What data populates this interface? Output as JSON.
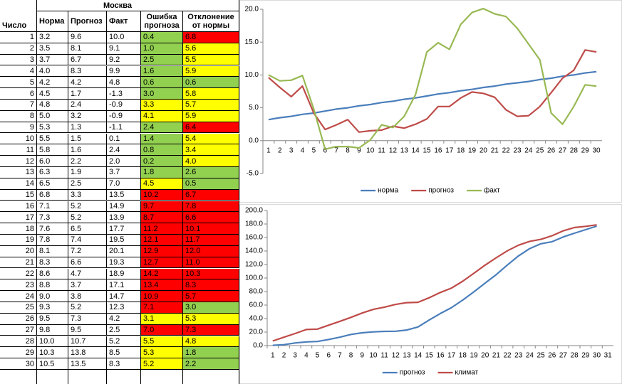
{
  "table": {
    "title": "Москва",
    "headers": [
      "Число",
      "Норма",
      "Прогноз",
      "Факт",
      "Ошибка прогноза",
      "Отклонение от нормы"
    ],
    "rows": [
      [
        "1",
        "3.2",
        "9.6",
        "10.0",
        "0.4",
        "6.8"
      ],
      [
        "2",
        "3.5",
        "8.1",
        "9.1",
        "1.0",
        "5.6"
      ],
      [
        "3",
        "3.7",
        "6.7",
        "9.2",
        "2.5",
        "5.5"
      ],
      [
        "4",
        "4.0",
        "8.3",
        "9.9",
        "1.6",
        "5.9"
      ],
      [
        "5",
        "4.2",
        "4.2",
        "4.8",
        "0.6",
        "0.6"
      ],
      [
        "6",
        "4.5",
        "1.7",
        "-1.3",
        "3.0",
        "5.8"
      ],
      [
        "7",
        "4.8",
        "2.4",
        "-0.9",
        "3.3",
        "5.7"
      ],
      [
        "8",
        "5.0",
        "3.2",
        "-0.9",
        "4.1",
        "5.9"
      ],
      [
        "9",
        "5.3",
        "1.3",
        "-1.1",
        "2.4",
        "6.4"
      ],
      [
        "10",
        "5.5",
        "1.5",
        "0.1",
        "1.4",
        "5.4"
      ],
      [
        "11",
        "5.8",
        "1.6",
        "2.4",
        "0.8",
        "3.4"
      ],
      [
        "12",
        "6.0",
        "2.2",
        "2.0",
        "0.2",
        "4.0"
      ],
      [
        "13",
        "6.3",
        "1.9",
        "3.7",
        "1.8",
        "2.6"
      ],
      [
        "14",
        "6.5",
        "2.5",
        "7.0",
        "4.5",
        "0.5"
      ],
      [
        "15",
        "6.8",
        "3.3",
        "13.5",
        "10.2",
        "6.7"
      ],
      [
        "16",
        "7.1",
        "5.2",
        "14.9",
        "9.7",
        "7.8"
      ],
      [
        "17",
        "7.3",
        "5.2",
        "13.9",
        "8.7",
        "6.6"
      ],
      [
        "18",
        "7.6",
        "6.5",
        "17.7",
        "11.2",
        "10.1"
      ],
      [
        "19",
        "7.8",
        "7.4",
        "19.5",
        "12.1",
        "11.7"
      ],
      [
        "20",
        "8.1",
        "7.2",
        "20.1",
        "12.9",
        "12.0"
      ],
      [
        "21",
        "8.3",
        "6.6",
        "19.3",
        "12.7",
        "11.0"
      ],
      [
        "22",
        "8.6",
        "4.7",
        "18.9",
        "14.2",
        "10.3"
      ],
      [
        "23",
        "8.8",
        "3.7",
        "17.1",
        "13.4",
        "8.3"
      ],
      [
        "24",
        "9.0",
        "3.8",
        "14.7",
        "10.9",
        "5.7"
      ],
      [
        "25",
        "9.3",
        "5.2",
        "12.3",
        "7.1",
        "3.0"
      ],
      [
        "26",
        "9.5",
        "7.3",
        "4.2",
        "3.1",
        "5.3"
      ],
      [
        "27",
        "9.8",
        "9.5",
        "2.5",
        "7.0",
        "7.3"
      ],
      [
        "28",
        "10.0",
        "10.7",
        "5.2",
        "5.5",
        "4.8"
      ],
      [
        "29",
        "10.3",
        "13.8",
        "8.5",
        "5.3",
        "1.8"
      ],
      [
        "30",
        "10.5",
        "13.5",
        "8.3",
        "5.2",
        "2.2"
      ]
    ],
    "error_colors": [
      "#92d050",
      "#92d050",
      "#92d050",
      "#92d050",
      "#92d050",
      "#92d050",
      "#ffff00",
      "#ffff00",
      "#92d050",
      "#92d050",
      "#92d050",
      "#92d050",
      "#92d050",
      "#ffff00",
      "#ff0000",
      "#ff0000",
      "#ff0000",
      "#ff0000",
      "#ff0000",
      "#ff0000",
      "#ff0000",
      "#ff0000",
      "#ff0000",
      "#ff0000",
      "#ff0000",
      "#ffff00",
      "#ff0000",
      "#ffff00",
      "#ffff00",
      "#ffff00"
    ],
    "deviation_colors": [
      "#ff0000",
      "#ffff00",
      "#ffff00",
      "#ffff00",
      "#92d050",
      "#ffff00",
      "#ffff00",
      "#ffff00",
      "#ff0000",
      "#ffff00",
      "#ffff00",
      "#ffff00",
      "#92d050",
      "#92d050",
      "#ff0000",
      "#ff0000",
      "#ff0000",
      "#ff0000",
      "#ff0000",
      "#ff0000",
      "#ff0000",
      "#ff0000",
      "#ff0000",
      "#ff0000",
      "#92d050",
      "#ffff00",
      "#ff0000",
      "#ffff00",
      "#92d050",
      "#92d050"
    ]
  },
  "chart_data": [
    {
      "type": "line",
      "categories": [
        "1",
        "2",
        "3",
        "4",
        "5",
        "6",
        "7",
        "8",
        "9",
        "10",
        "11",
        "12",
        "13",
        "14",
        "15",
        "16",
        "17",
        "18",
        "19",
        "20",
        "21",
        "22",
        "23",
        "24",
        "25",
        "26",
        "27",
        "28",
        "29",
        "30"
      ],
      "series": [
        {
          "name": "норма",
          "color": "#4a7ebb",
          "values": [
            3.2,
            3.5,
            3.7,
            4.0,
            4.2,
            4.5,
            4.8,
            5.0,
            5.3,
            5.5,
            5.8,
            6.0,
            6.3,
            6.5,
            6.8,
            7.1,
            7.3,
            7.6,
            7.8,
            8.1,
            8.3,
            8.6,
            8.8,
            9.0,
            9.3,
            9.5,
            9.8,
            10.0,
            10.3,
            10.5
          ]
        },
        {
          "name": "прогноз",
          "color": "#be4b48",
          "values": [
            9.6,
            8.1,
            6.7,
            8.3,
            4.2,
            1.7,
            2.4,
            3.2,
            1.3,
            1.5,
            1.6,
            2.2,
            1.9,
            2.5,
            3.3,
            5.2,
            5.2,
            6.5,
            7.4,
            7.2,
            6.6,
            4.7,
            3.7,
            3.8,
            5.2,
            7.3,
            9.5,
            10.7,
            13.8,
            13.5
          ]
        },
        {
          "name": "факт",
          "color": "#98b954",
          "values": [
            10.0,
            9.1,
            9.2,
            9.9,
            4.8,
            -1.3,
            -0.9,
            -0.9,
            -1.1,
            0.1,
            2.4,
            2.0,
            3.7,
            7.0,
            13.5,
            14.9,
            13.9,
            17.7,
            19.5,
            20.1,
            19.3,
            18.9,
            17.1,
            14.7,
            12.3,
            4.2,
            2.5,
            5.2,
            8.5,
            8.3
          ]
        }
      ],
      "ylim": [
        -5,
        20
      ],
      "yticks": [
        {
          "value": -5,
          "label": "-5.0"
        },
        {
          "value": 0,
          "label": "0.0"
        },
        {
          "value": 5,
          "label": "5.0"
        },
        {
          "value": 10,
          "label": "10.0"
        },
        {
          "value": 15,
          "label": "15.0"
        },
        {
          "value": 20,
          "label": "20.0"
        }
      ],
      "legend": "bottom"
    },
    {
      "type": "line",
      "categories": [
        "1",
        "2",
        "3",
        "4",
        "5",
        "6",
        "7",
        "8",
        "9",
        "10",
        "11",
        "12",
        "13",
        "14",
        "15",
        "16",
        "17",
        "18",
        "19",
        "20",
        "21",
        "22",
        "23",
        "24",
        "25",
        "26",
        "27",
        "28",
        "29",
        "30",
        "31"
      ],
      "series": [
        {
          "name": "прогноз",
          "color": "#4a7ebb",
          "values": [
            0.4,
            1.4,
            3.9,
            5.5,
            6.1,
            9.1,
            12.4,
            16.5,
            18.9,
            20.3,
            21.1,
            21.3,
            23.1,
            27.6,
            37.8,
            47.5,
            56.2,
            67.4,
            79.5,
            92.4,
            105.1,
            119.3,
            132.7,
            143.6,
            150.7,
            153.8,
            160.8,
            166.3,
            171.6,
            176.8,
            null
          ]
        },
        {
          "name": "климат",
          "color": "#be4b48",
          "values": [
            6.8,
            12.4,
            17.9,
            23.8,
            24.4,
            30.2,
            35.9,
            41.8,
            48.2,
            53.6,
            57.0,
            61.0,
            63.6,
            64.1,
            70.8,
            78.6,
            85.2,
            95.3,
            107.0,
            119.0,
            130.0,
            140.3,
            148.6,
            154.3,
            157.3,
            162.6,
            169.9,
            174.7,
            176.5,
            178.7,
            null
          ]
        }
      ],
      "ylim": [
        0,
        200
      ],
      "yticks": [
        {
          "value": 0,
          "label": "0.0"
        },
        {
          "value": 20,
          "label": "20.0"
        },
        {
          "value": 40,
          "label": "40.0"
        },
        {
          "value": 60,
          "label": "60.0"
        },
        {
          "value": 80,
          "label": "80.0"
        },
        {
          "value": 100,
          "label": "100.0"
        },
        {
          "value": 120,
          "label": "120.0"
        },
        {
          "value": 140,
          "label": "140.0"
        },
        {
          "value": 160,
          "label": "160.0"
        },
        {
          "value": 180,
          "label": "180.0"
        },
        {
          "value": 200,
          "label": "200.0"
        }
      ],
      "legend": "bottom"
    }
  ]
}
